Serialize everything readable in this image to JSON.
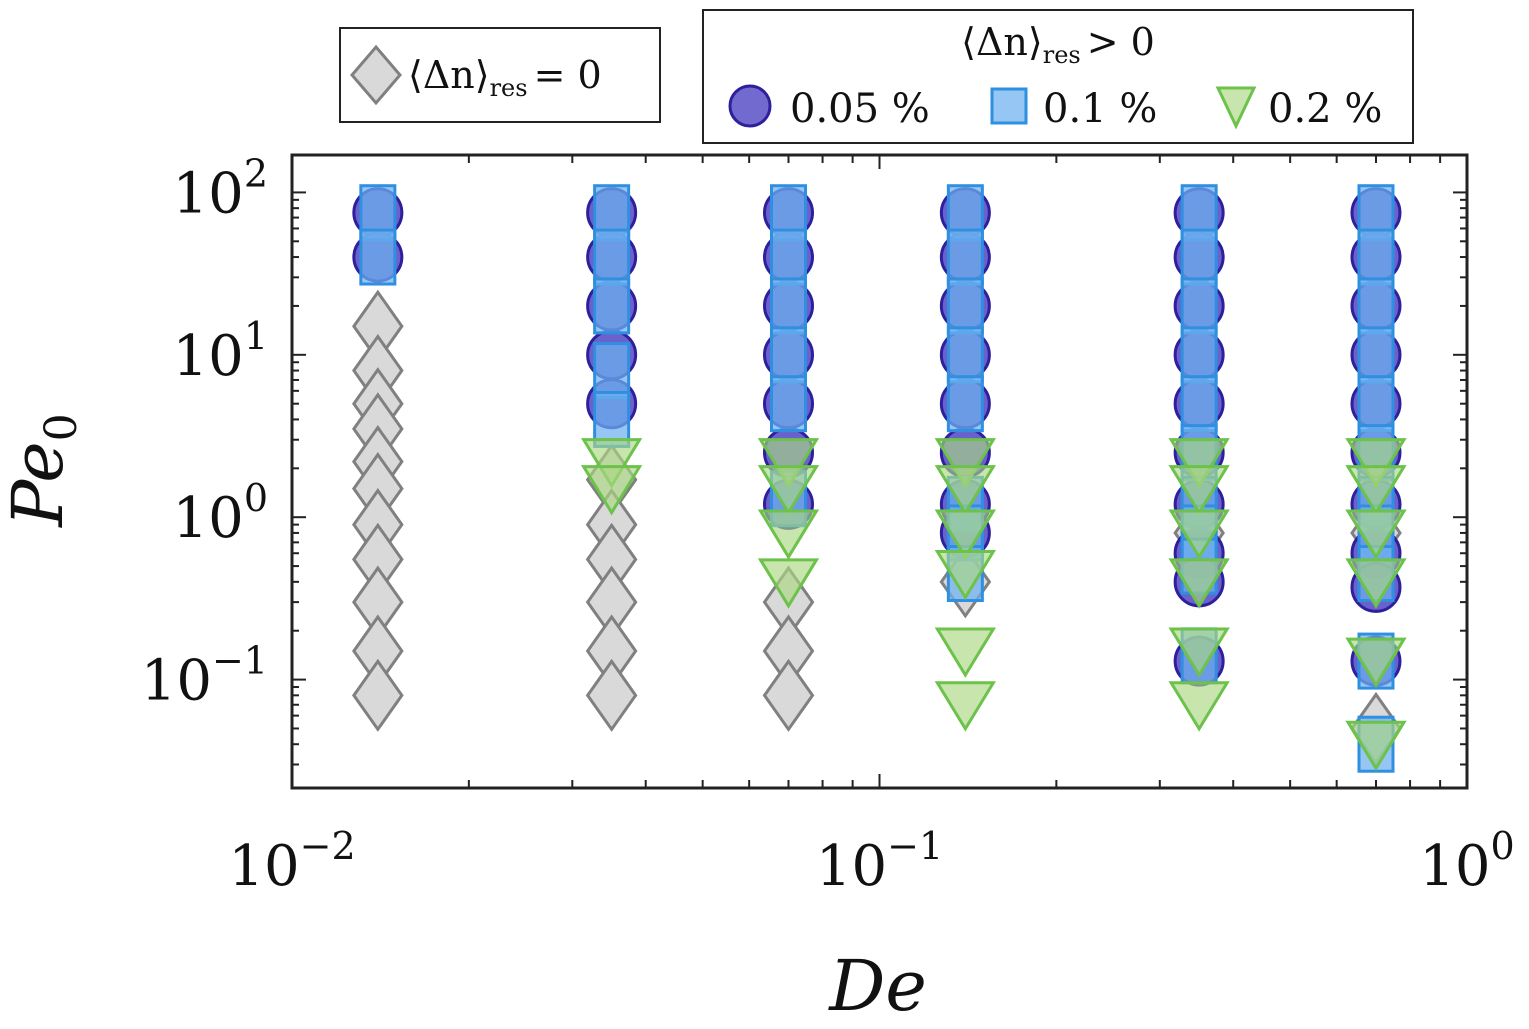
{
  "chart_data": {
    "type": "scatter",
    "title": "",
    "xlabel": "De",
    "ylabel": "Pe",
    "ylabel_sub": "0",
    "xscale": "log",
    "yscale": "log",
    "xlim": [
      0.01,
      1
    ],
    "ylim": [
      0.0215,
      170
    ],
    "xticks": [
      {
        "value": 0.01,
        "base": "10",
        "exp": "−2"
      },
      {
        "value": 0.1,
        "base": "10",
        "exp": "−1"
      },
      {
        "value": 1,
        "base": "10",
        "exp": "0"
      }
    ],
    "yticks": [
      {
        "value": 0.1,
        "base": "10",
        "exp": "−1"
      },
      {
        "value": 1,
        "base": "10",
        "exp": "0"
      },
      {
        "value": 10,
        "base": "10",
        "exp": "1"
      },
      {
        "value": 100,
        "base": "10",
        "exp": "2"
      }
    ],
    "legend_zero": {
      "label_main": "⟨Δn⟩",
      "label_sub": "res",
      "label_rel": "= 0"
    },
    "legend_positive": {
      "header_main": "⟨Δn⟩",
      "header_sub": "res",
      "header_rel": "> 0"
    },
    "series": [
      {
        "name": "<Δn>res = 0",
        "label": "",
        "marker": "diamond",
        "fill": "#d9d9d9",
        "stroke": "#808080",
        "points": [
          [
            0.014,
            15
          ],
          [
            0.014,
            8
          ],
          [
            0.014,
            5
          ],
          [
            0.014,
            3.5
          ],
          [
            0.014,
            2.2
          ],
          [
            0.014,
            1.5
          ],
          [
            0.014,
            0.9
          ],
          [
            0.014,
            0.55
          ],
          [
            0.014,
            0.3
          ],
          [
            0.014,
            0.15
          ],
          [
            0.014,
            0.08
          ],
          [
            0.035,
            1.7
          ],
          [
            0.035,
            0.9
          ],
          [
            0.035,
            0.55
          ],
          [
            0.035,
            0.3
          ],
          [
            0.035,
            0.15
          ],
          [
            0.035,
            0.08
          ],
          [
            0.07,
            0.3
          ],
          [
            0.07,
            0.15
          ],
          [
            0.07,
            0.08
          ],
          [
            0.14,
            0.4
          ],
          [
            0.35,
            0.8
          ],
          [
            0.7,
            0.8
          ],
          [
            0.7,
            0.05
          ]
        ]
      },
      {
        "name": "0.05 %",
        "label": "0.05 %",
        "marker": "circle",
        "fill": "#5a50c8",
        "stroke": "#2e1f9c",
        "points": [
          [
            0.014,
            75
          ],
          [
            0.014,
            40
          ],
          [
            0.035,
            75
          ],
          [
            0.035,
            40
          ],
          [
            0.035,
            20
          ],
          [
            0.035,
            10
          ],
          [
            0.035,
            5
          ],
          [
            0.07,
            75
          ],
          [
            0.07,
            40
          ],
          [
            0.07,
            20
          ],
          [
            0.07,
            10
          ],
          [
            0.07,
            5
          ],
          [
            0.07,
            2.5
          ],
          [
            0.07,
            1.2
          ],
          [
            0.14,
            75
          ],
          [
            0.14,
            40
          ],
          [
            0.14,
            20
          ],
          [
            0.14,
            10
          ],
          [
            0.14,
            5
          ],
          [
            0.14,
            2.5
          ],
          [
            0.14,
            1.2
          ],
          [
            0.14,
            0.8
          ],
          [
            0.35,
            75
          ],
          [
            0.35,
            40
          ],
          [
            0.35,
            20
          ],
          [
            0.35,
            10
          ],
          [
            0.35,
            5
          ],
          [
            0.35,
            2.5
          ],
          [
            0.35,
            1.2
          ],
          [
            0.35,
            0.6
          ],
          [
            0.35,
            0.4
          ],
          [
            0.35,
            0.13
          ],
          [
            0.7,
            75
          ],
          [
            0.7,
            40
          ],
          [
            0.7,
            20
          ],
          [
            0.7,
            10
          ],
          [
            0.7,
            5
          ],
          [
            0.7,
            2.5
          ],
          [
            0.7,
            1.2
          ],
          [
            0.7,
            0.6
          ],
          [
            0.7,
            0.37
          ],
          [
            0.7,
            0.13
          ]
        ]
      },
      {
        "name": "0.1 %",
        "label": "0.1 %",
        "marker": "square",
        "fill": "rgba(110,178,240,0.72)",
        "stroke": "#2f8fe0",
        "points": [
          [
            0.014,
            75
          ],
          [
            0.014,
            40
          ],
          [
            0.035,
            75
          ],
          [
            0.035,
            40
          ],
          [
            0.035,
            20
          ],
          [
            0.035,
            8
          ],
          [
            0.035,
            4
          ],
          [
            0.07,
            75
          ],
          [
            0.07,
            40
          ],
          [
            0.07,
            20
          ],
          [
            0.07,
            10
          ],
          [
            0.07,
            5
          ],
          [
            0.07,
            1.3
          ],
          [
            0.14,
            75
          ],
          [
            0.14,
            40
          ],
          [
            0.14,
            20
          ],
          [
            0.14,
            10
          ],
          [
            0.14,
            5
          ],
          [
            0.14,
            1.2
          ],
          [
            0.14,
            0.8
          ],
          [
            0.14,
            0.45
          ],
          [
            0.35,
            75
          ],
          [
            0.35,
            40
          ],
          [
            0.35,
            20
          ],
          [
            0.35,
            10
          ],
          [
            0.35,
            5
          ],
          [
            0.35,
            2.5
          ],
          [
            0.35,
            1.2
          ],
          [
            0.35,
            0.8
          ],
          [
            0.35,
            0.5
          ],
          [
            0.35,
            0.14
          ],
          [
            0.7,
            75
          ],
          [
            0.7,
            40
          ],
          [
            0.7,
            20
          ],
          [
            0.7,
            10
          ],
          [
            0.7,
            5
          ],
          [
            0.7,
            2.5
          ],
          [
            0.7,
            1.2
          ],
          [
            0.7,
            0.8
          ],
          [
            0.7,
            0.45
          ],
          [
            0.7,
            0.13
          ],
          [
            0.7,
            0.04
          ]
        ]
      },
      {
        "name": "0.2 %",
        "label": "0.2 %",
        "marker": "triangle-down",
        "fill": "rgba(170,215,130,0.65)",
        "stroke": "#6cc24a",
        "points": [
          [
            0.035,
            2.2
          ],
          [
            0.035,
            1.5
          ],
          [
            0.07,
            2.2
          ],
          [
            0.07,
            1.5
          ],
          [
            0.07,
            0.8
          ],
          [
            0.07,
            0.4
          ],
          [
            0.14,
            2.2
          ],
          [
            0.14,
            1.5
          ],
          [
            0.14,
            0.8
          ],
          [
            0.14,
            0.45
          ],
          [
            0.14,
            0.15
          ],
          [
            0.14,
            0.07
          ],
          [
            0.35,
            2.2
          ],
          [
            0.35,
            1.5
          ],
          [
            0.35,
            0.8
          ],
          [
            0.35,
            0.4
          ],
          [
            0.35,
            0.15
          ],
          [
            0.35,
            0.07
          ],
          [
            0.7,
            2.2
          ],
          [
            0.7,
            1.5
          ],
          [
            0.7,
            0.8
          ],
          [
            0.7,
            0.4
          ],
          [
            0.7,
            0.13
          ],
          [
            0.7,
            0.04
          ]
        ]
      }
    ]
  }
}
